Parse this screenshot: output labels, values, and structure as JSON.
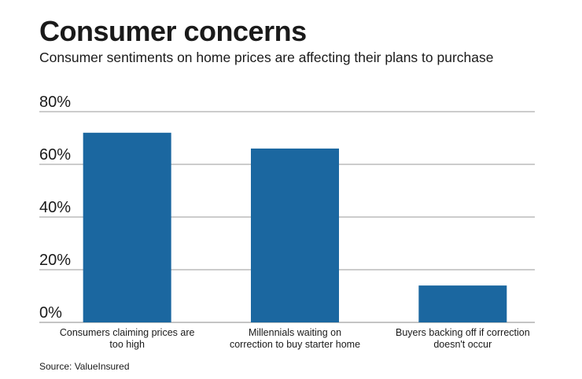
{
  "chart_data": {
    "type": "bar",
    "title": "Consumer concerns",
    "subtitle": "Consumer sentiments on home prices are affecting their plans to purchase",
    "source": "Source: ValueInsured",
    "categories": [
      [
        "Consumers claiming prices are",
        "too high"
      ],
      [
        "Millennials waiting on",
        "correction to buy starter home"
      ],
      [
        "Buyers backing off if correction",
        "doesn't occur"
      ]
    ],
    "values": [
      72,
      66,
      14
    ],
    "yticks": [
      "0%",
      "20%",
      "40%",
      "60%",
      "80%"
    ],
    "ytick_values": [
      0,
      20,
      40,
      60,
      80
    ],
    "ylim": [
      0,
      80
    ],
    "xlabel": "",
    "ylabel": "",
    "grid": true,
    "bar_color": "#1b67a0"
  }
}
